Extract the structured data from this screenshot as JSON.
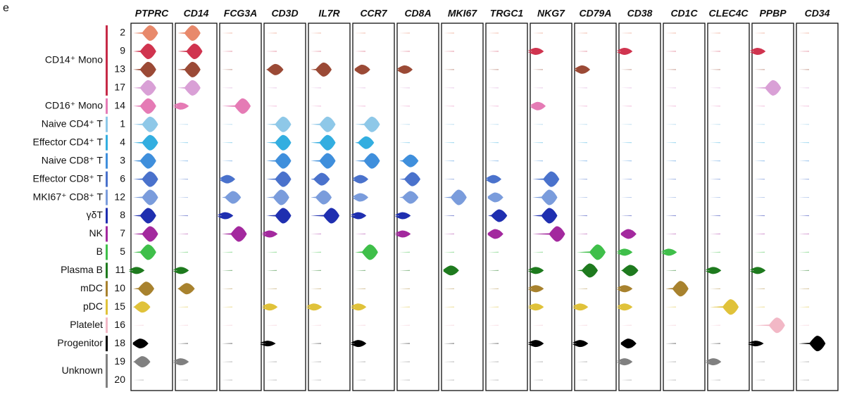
{
  "chart_data": {
    "type": "violin",
    "panel_label": "e",
    "genes": [
      "PTPRC",
      "CD14",
      "FCG3A",
      "CD3D",
      "IL7R",
      "CCR7",
      "CD8A",
      "MKI67",
      "TRGC1",
      "NKG7",
      "CD79A",
      "CD38",
      "CD1C",
      "CLEC4C",
      "PPBP",
      "CD34"
    ],
    "groups": [
      {
        "label": "CD14⁺ Mono",
        "color": "#c62a47",
        "clusters": [
          {
            "id": "2",
            "color": "#e8896b",
            "values": [
              0.45,
              0.4,
              0,
              0,
              0,
              0,
              0,
              0,
              0,
              0,
              0,
              0,
              0,
              0,
              0,
              0
            ]
          },
          {
            "id": "9",
            "color": "#d0344f",
            "values": [
              0.4,
              0.45,
              0,
              0,
              0,
              0,
              0,
              0,
              0,
              0.1,
              0,
              0.1,
              0,
              0,
              0.1,
              0
            ]
          },
          {
            "id": "13",
            "color": "#9b4a36",
            "values": [
              0.4,
              0.4,
              0,
              0.25,
              0.35,
              0.2,
              0.15,
              0,
              0,
              0,
              0.15,
              0,
              0,
              0,
              0,
              0
            ]
          },
          {
            "id": "17",
            "color": "#d9a0d6",
            "values": [
              0.4,
              0.4,
              0,
              0,
              0,
              0,
              0,
              0,
              0,
              0,
              0,
              0,
              0,
              0,
              0.5,
              0
            ]
          }
        ]
      },
      {
        "label": "CD16⁺ Mono",
        "color": "#e57bb5",
        "clusters": [
          {
            "id": "14",
            "color": "#e57bb5",
            "values": [
              0.4,
              0.1,
              0.55,
              0,
              0,
              0,
              0,
              0,
              0,
              0.15,
              0,
              0,
              0,
              0,
              0,
              0
            ]
          }
        ]
      },
      {
        "label": "Naive CD4⁺ T",
        "color": "#8ec8e8",
        "clusters": [
          {
            "id": "1",
            "color": "#8ec8e8",
            "values": [
              0.45,
              0,
              0,
              0.45,
              0.45,
              0.45,
              0,
              0,
              0,
              0,
              0,
              0,
              0,
              0,
              0,
              0
            ]
          }
        ]
      },
      {
        "label": "Effector CD4⁺ T",
        "color": "#33aee0",
        "clusters": [
          {
            "id": "4",
            "color": "#33aee0",
            "values": [
              0.45,
              0,
              0,
              0.45,
              0.45,
              0.3,
              0,
              0,
              0,
              0,
              0,
              0,
              0,
              0,
              0,
              0
            ]
          }
        ]
      },
      {
        "label": "Naive CD8⁺ T",
        "color": "#3f8fdc",
        "clusters": [
          {
            "id": "3",
            "color": "#3f8fdc",
            "values": [
              0.4,
              0,
              0,
              0.45,
              0.45,
              0.45,
              0.3,
              0,
              0,
              0,
              0,
              0,
              0,
              0,
              0,
              0
            ]
          }
        ]
      },
      {
        "label": "Effector CD8⁺ T",
        "color": "#4a72cc",
        "clusters": [
          {
            "id": "6",
            "color": "#4a72cc",
            "values": [
              0.45,
              0,
              0.15,
              0.45,
              0.3,
              0.15,
              0.35,
              0,
              0.15,
              0.5,
              0,
              0,
              0,
              0,
              0,
              0
            ]
          }
        ]
      },
      {
        "label": "MKI67⁺ CD8⁺ T",
        "color": "#7a9cdc",
        "clusters": [
          {
            "id": "12",
            "color": "#7a9cdc",
            "values": [
              0.45,
              0,
              0.3,
              0.4,
              0.35,
              0.15,
              0.3,
              0.4,
              0.2,
              0.45,
              0,
              0,
              0,
              0,
              0,
              0
            ]
          }
        ]
      },
      {
        "label": "γδT",
        "color": "#1f2fb0",
        "clusters": [
          {
            "id": "8",
            "color": "#1f2fb0",
            "values": [
              0.4,
              0,
              0.1,
              0.45,
              0.55,
              0.1,
              0.1,
              0,
              0.3,
              0.45,
              0,
              0,
              0,
              0,
              0,
              0
            ]
          }
        ]
      },
      {
        "label": "NK",
        "color": "#a3299e",
        "clusters": [
          {
            "id": "7",
            "color": "#a3299e",
            "values": [
              0.45,
              0,
              0.45,
              0.1,
              0,
              0,
              0.1,
              0,
              0.2,
              0.65,
              0,
              0.2,
              0,
              0,
              0,
              0
            ]
          }
        ]
      },
      {
        "label": "B",
        "color": "#3fbf4a",
        "clusters": [
          {
            "id": "5",
            "color": "#3fbf4a",
            "values": [
              0.4,
              0,
              0,
              0,
              0,
              0.4,
              0,
              0,
              0,
              0,
              0.55,
              0.1,
              0.1,
              0,
              0,
              0
            ]
          }
        ]
      },
      {
        "label": "Plasma B",
        "color": "#1e7a1e",
        "clusters": [
          {
            "id": "11",
            "color": "#1e7a1e",
            "values": [
              0.1,
              0.1,
              0,
              0,
              0,
              0,
              0,
              0.2,
              0,
              0.1,
              0.35,
              0.25,
              0,
              0.1,
              0.1,
              0
            ]
          }
        ]
      },
      {
        "label": "mDC",
        "color": "#a8822e",
        "clusters": [
          {
            "id": "10",
            "color": "#a8822e",
            "values": [
              0.35,
              0.25,
              0,
              0,
              0,
              0,
              0,
              0,
              0,
              0.1,
              0,
              0.1,
              0.4,
              0,
              0,
              0
            ]
          }
        ]
      },
      {
        "label": "pDC",
        "color": "#e0c23a",
        "clusters": [
          {
            "id": "15",
            "color": "#e0c23a",
            "values": [
              0.25,
              0,
              0,
              0.1,
              0.1,
              0.1,
              0,
              0,
              0,
              0.1,
              0.1,
              0.1,
              0,
              0.55,
              0,
              0
            ]
          }
        ]
      },
      {
        "label": "Platelet",
        "color": "#f2b8c6",
        "clusters": [
          {
            "id": "16",
            "color": "#f2b8c6",
            "values": [
              0,
              0,
              0,
              0,
              0,
              0,
              0,
              0,
              0,
              0,
              0,
              0,
              0,
              0,
              0.6,
              0
            ]
          }
        ]
      },
      {
        "label": "Progenitor",
        "color": "#000000",
        "clusters": [
          {
            "id": "18",
            "color": "#000000",
            "values": [
              0.2,
              0,
              0,
              0.05,
              0,
              0.1,
              0,
              0,
              0,
              0.1,
              0.1,
              0.2,
              0,
              0,
              0.05,
              0.5
            ]
          }
        ]
      },
      {
        "label": "Unknown",
        "color": "#808080",
        "clusters": [
          {
            "id": "19",
            "color": "#808080",
            "values": [
              0.25,
              0.1,
              0,
              0,
              0,
              0,
              0,
              0,
              0,
              0,
              0,
              0.1,
              0,
              0.1,
              0,
              0
            ]
          },
          {
            "id": "20",
            "color": "#808080",
            "values": [
              0,
              0,
              0,
              0,
              0,
              0,
              0,
              0,
              0,
              0,
              0,
              0,
              0,
              0,
              0,
              0
            ]
          }
        ]
      }
    ]
  }
}
